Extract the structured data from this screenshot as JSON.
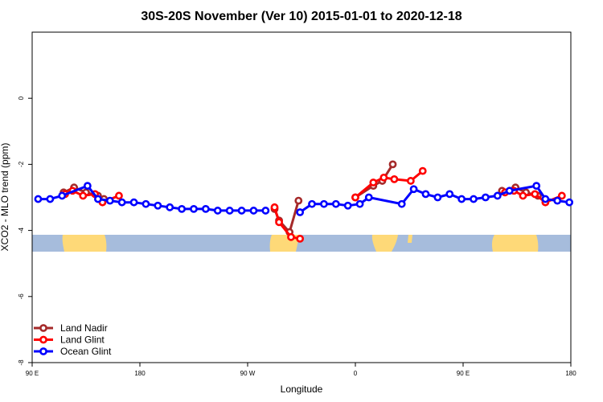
{
  "chart_data": {
    "type": "line",
    "title": "30S-20S November (Ver 10)   2015-01-01 to 2020-12-18",
    "xlabel": "Longitude",
    "ylabel": "XCO2 - MLO trend (ppm)",
    "xlim": [
      90,
      450
    ],
    "ylim": [
      -8,
      2
    ],
    "x_ticks": [
      {
        "value": 90,
        "label": "90 E"
      },
      {
        "value": 162,
        "label": "180"
      },
      {
        "value": 234,
        "label": "90 W"
      },
      {
        "value": 306,
        "label": "0"
      },
      {
        "value": 378,
        "label": "90 E"
      },
      {
        "value": 450,
        "label": "180"
      }
    ],
    "y_ticks": [
      {
        "value": 0,
        "label": "0"
      },
      {
        "value": -2,
        "label": "-2"
      },
      {
        "value": -4,
        "label": "-4"
      },
      {
        "value": -6,
        "label": "-6"
      },
      {
        "value": -8,
        "label": "-8"
      }
    ],
    "legend_position": "bottom-left",
    "series": [
      {
        "name": "Land Nadir",
        "color": "#A52A2A",
        "points": [
          [
            111,
            -2.85
          ],
          [
            118,
            -2.7
          ],
          [
            126,
            -2.85
          ],
          [
            134,
            -2.95
          ],
          [
            138,
            -3.05
          ],
          [
            252,
            -3.35
          ],
          [
            255,
            -3.7
          ],
          [
            262,
            -4.05
          ],
          [
            268,
            -3.1
          ],
          [
            306,
            -3.0
          ],
          [
            318,
            -2.65
          ],
          [
            324,
            -2.5
          ],
          [
            331,
            -2.0
          ],
          [
            404,
            -2.8
          ],
          [
            413,
            -2.7
          ],
          [
            420,
            -2.85
          ],
          [
            428,
            -2.95
          ]
        ],
        "breaks_after": [
          4,
          8,
          12
        ]
      },
      {
        "name": "Land Glint",
        "color": "#FF0000",
        "points": [
          [
            112,
            -2.9
          ],
          [
            117,
            -2.8
          ],
          [
            124,
            -2.95
          ],
          [
            132,
            -2.9
          ],
          [
            137,
            -3.15
          ],
          [
            148,
            -2.95
          ],
          [
            252,
            -3.3
          ],
          [
            255,
            -3.75
          ],
          [
            263,
            -4.2
          ],
          [
            269,
            -4.25
          ],
          [
            306,
            -3.0
          ],
          [
            318,
            -2.55
          ],
          [
            325,
            -2.4
          ],
          [
            332,
            -2.45
          ],
          [
            343,
            -2.5
          ],
          [
            351,
            -2.2
          ],
          [
            406,
            -2.85
          ],
          [
            412,
            -2.8
          ],
          [
            418,
            -2.95
          ],
          [
            426,
            -2.9
          ],
          [
            433,
            -3.15
          ],
          [
            444,
            -2.95
          ]
        ],
        "breaks_after": [
          5,
          9,
          15
        ]
      },
      {
        "name": "Ocean Glint",
        "color": "#0000FF",
        "points": [
          [
            94,
            -3.05
          ],
          [
            102,
            -3.05
          ],
          [
            110,
            -2.95
          ],
          [
            127,
            -2.65
          ],
          [
            134,
            -3.05
          ],
          [
            142,
            -3.1
          ],
          [
            150,
            -3.15
          ],
          [
            158,
            -3.15
          ],
          [
            166,
            -3.2
          ],
          [
            174,
            -3.25
          ],
          [
            182,
            -3.3
          ],
          [
            190,
            -3.35
          ],
          [
            198,
            -3.35
          ],
          [
            206,
            -3.35
          ],
          [
            214,
            -3.4
          ],
          [
            222,
            -3.4
          ],
          [
            230,
            -3.4
          ],
          [
            238,
            -3.4
          ],
          [
            246,
            -3.4
          ],
          [
            269,
            -3.45
          ],
          [
            277,
            -3.2
          ],
          [
            285,
            -3.2
          ],
          [
            293,
            -3.2
          ],
          [
            301,
            -3.25
          ],
          [
            309,
            -3.2
          ],
          [
            315,
            -3.0
          ],
          [
            337,
            -3.2
          ],
          [
            345,
            -2.75
          ],
          [
            353,
            -2.9
          ],
          [
            361,
            -3.0
          ],
          [
            369,
            -2.9
          ],
          [
            377,
            -3.05
          ],
          [
            385,
            -3.05
          ],
          [
            393,
            -3.0
          ],
          [
            401,
            -2.95
          ],
          [
            409,
            -2.8
          ],
          [
            427,
            -2.65
          ],
          [
            433,
            -3.05
          ],
          [
            441,
            -3.1
          ],
          [
            449,
            -3.15
          ]
        ],
        "breaks_after": [
          18
        ]
      }
    ]
  }
}
